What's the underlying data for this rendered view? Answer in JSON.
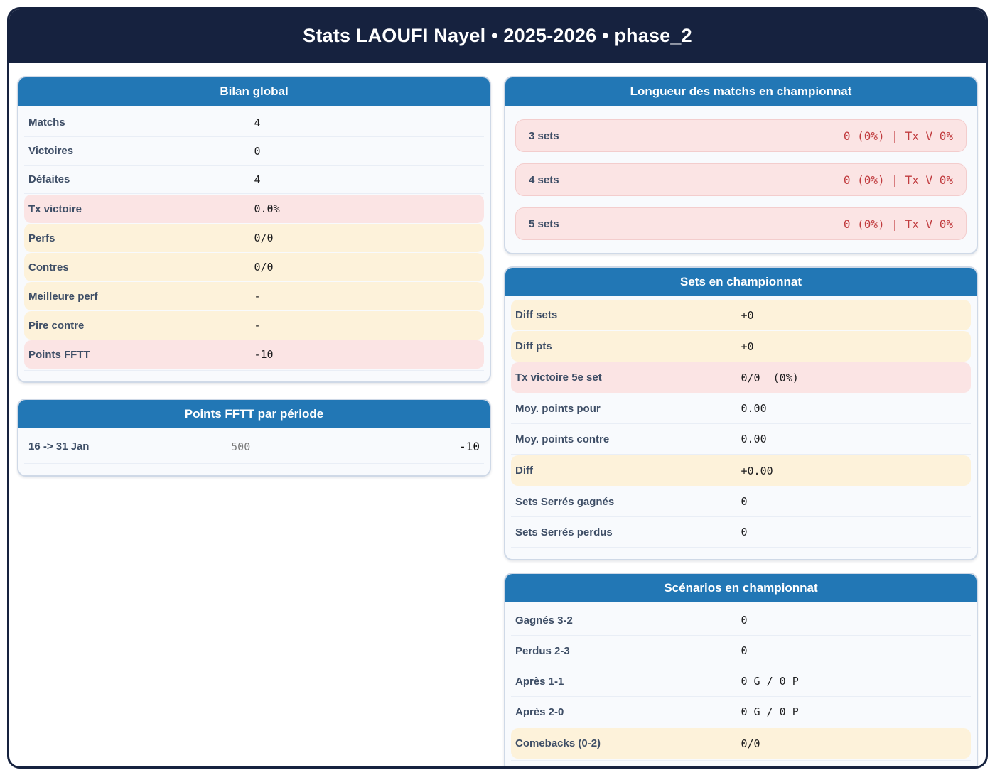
{
  "header": {
    "title": "Stats LAOUFI Nayel • 2025-2026 • phase_2"
  },
  "colors": {
    "navy": "#16223f",
    "blue_header": "#2277b5",
    "pink_row": "#fbe4e4",
    "cream_row": "#fdf2da",
    "red_value": "#c13c3f",
    "label_navy": "#3e4e66"
  },
  "cards": {
    "bilan": {
      "title": "Bilan global",
      "rows": [
        {
          "label": "Matchs",
          "value": "4"
        },
        {
          "label": "Victoires",
          "value": "0"
        },
        {
          "label": "Défaites",
          "value": "4"
        },
        {
          "label": "Tx victoire",
          "value": "0.0%"
        },
        {
          "label": "Perfs",
          "value": "0/0"
        },
        {
          "label": "Contres",
          "value": "0/0"
        },
        {
          "label": "Meilleure perf",
          "value": "-"
        },
        {
          "label": "Pire contre",
          "value": "-"
        },
        {
          "label": "Points FFTT",
          "value": "-10"
        }
      ]
    },
    "periodes": {
      "title": "Points FFTT par période",
      "rows": [
        {
          "label": "16 -> 31 Jan",
          "points": "500",
          "diff": "-10"
        }
      ]
    },
    "longueur": {
      "title": "Longueur des matchs en championnat",
      "rows": [
        {
          "label": "3 sets",
          "value": "0 (0%) | Tx V 0%"
        },
        {
          "label": "4 sets",
          "value": "0 (0%) | Tx V 0%"
        },
        {
          "label": "5 sets",
          "value": "0 (0%) | Tx V 0%"
        }
      ]
    },
    "sets": {
      "title": "Sets en championnat",
      "rows": [
        {
          "label": "Diff sets",
          "value": "+0"
        },
        {
          "label": "Diff pts",
          "value": "+0"
        },
        {
          "label": "Tx victoire 5e set",
          "value": "0/0  (0%)"
        },
        {
          "label": "Moy. points pour",
          "value": "0.00"
        },
        {
          "label": "Moy. points contre",
          "value": "0.00"
        },
        {
          "label": "Diff",
          "value": "+0.00"
        },
        {
          "label": "Sets Serrés gagnés",
          "value": "0"
        },
        {
          "label": "Sets Serrés perdus",
          "value": "0"
        }
      ]
    },
    "scenarios": {
      "title": "Scénarios en championnat",
      "rows": [
        {
          "label": "Gagnés 3-2",
          "value": "0"
        },
        {
          "label": "Perdus 2-3",
          "value": "0"
        },
        {
          "label": "Après 1-1",
          "value": "0 G / 0 P"
        },
        {
          "label": "Après 2-0",
          "value": "0 G / 0 P"
        },
        {
          "label": "Comebacks (0-2)",
          "value": "0/0"
        }
      ]
    }
  }
}
